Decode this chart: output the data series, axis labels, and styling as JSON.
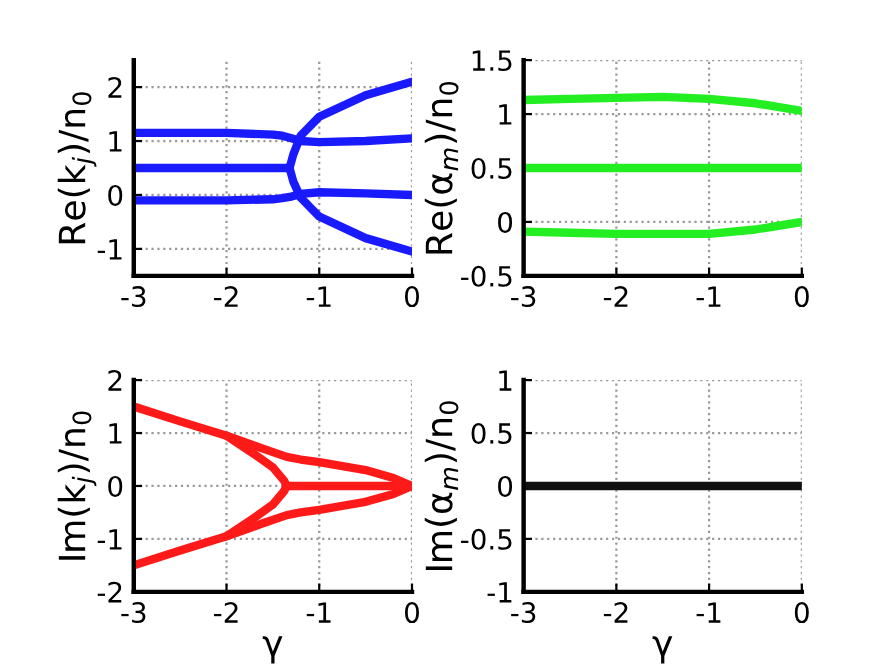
{
  "chart_data": [
    {
      "type": "line",
      "ylabel": "Re(k$_{j}$)/n$_{0}$",
      "xlim": [
        -3,
        0
      ],
      "ylim": [
        -1.5,
        2.5
      ],
      "xticks": [
        -3,
        -2,
        -1,
        0
      ],
      "yticks": [
        -1,
        0,
        1,
        2
      ],
      "grid": true,
      "x": [
        -3,
        -2.5,
        -2,
        -1.5,
        -1.4,
        -1.3,
        -1.2,
        -1.0,
        -0.5,
        0
      ],
      "series": [
        {
          "color": "#1a1aff",
          "values": [
            1.15,
            1.15,
            1.15,
            1.12,
            1.1,
            1.05,
            1.0,
            0.98,
            1.0,
            1.05
          ]
        },
        {
          "color": "#1a1aff",
          "x": [
            -3,
            -2,
            -1.32,
            -1.28,
            -1.2,
            -1.0,
            -0.5,
            0
          ],
          "values": [
            0.5,
            0.5,
            0.5,
            0.75,
            1.1,
            1.45,
            1.85,
            2.1
          ]
        },
        {
          "color": "#1a1aff",
          "x": [
            -1.32,
            -1.28,
            -1.2,
            -1.0,
            -0.5,
            0
          ],
          "values": [
            0.5,
            0.25,
            -0.05,
            -0.4,
            -0.8,
            -1.05
          ]
        },
        {
          "color": "#1a1aff",
          "values": [
            -0.1,
            -0.1,
            -0.1,
            -0.08,
            -0.06,
            -0.03,
            0.02,
            0.05,
            0.03,
            0.0
          ]
        }
      ]
    },
    {
      "type": "line",
      "ylabel": "Re(α$_{m}$)/n$_{0}$",
      "xlim": [
        -3,
        0
      ],
      "ylim": [
        -0.5,
        1.5
      ],
      "xticks": [
        -3,
        -2,
        -1,
        0
      ],
      "yticks": [
        -0.5,
        0,
        0.5,
        1,
        1.5
      ],
      "grid": true,
      "x": [
        -3,
        -2.5,
        -2,
        -1.5,
        -1,
        -0.5,
        0
      ],
      "series": [
        {
          "color": "#22ee22",
          "values": [
            1.13,
            1.14,
            1.15,
            1.16,
            1.14,
            1.1,
            1.03
          ]
        },
        {
          "color": "#22ee22",
          "values": [
            0.5,
            0.5,
            0.5,
            0.5,
            0.5,
            0.5,
            0.5
          ]
        },
        {
          "color": "#22ee22",
          "values": [
            -0.09,
            -0.1,
            -0.11,
            -0.11,
            -0.11,
            -0.07,
            0.0
          ]
        }
      ]
    },
    {
      "type": "line",
      "xlabel": "γ",
      "ylabel": "Im(k$_{j}$)/n$_{0}$",
      "xlim": [
        -3,
        0
      ],
      "ylim": [
        -2,
        2
      ],
      "xticks": [
        -3,
        -2,
        -1,
        0
      ],
      "yticks": [
        -2,
        -1,
        0,
        1,
        2
      ],
      "grid": true,
      "x": [
        -3,
        -2.5,
        -2,
        -1.6,
        -1.35,
        -1.2,
        -1,
        -0.5,
        -0.2,
        0
      ],
      "series": [
        {
          "color": "#ff1a1a",
          "values": [
            1.5,
            1.22,
            0.95,
            0.7,
            0.55,
            0.5,
            0.45,
            0.3,
            0.15,
            0.0
          ]
        },
        {
          "color": "#ff1a1a",
          "values": [
            -1.5,
            -1.22,
            -0.95,
            -0.7,
            -0.55,
            -0.5,
            -0.45,
            -0.3,
            -0.15,
            0.0
          ]
        },
        {
          "color": "#ff1a1a",
          "x": [
            -2,
            -1.7,
            -1.5,
            -1.38,
            -1.35,
            -1.38,
            -1.5,
            -1.7,
            -2
          ],
          "values": [
            0.95,
            0.6,
            0.35,
            0.1,
            0.0,
            -0.1,
            -0.35,
            -0.6,
            -0.95
          ]
        },
        {
          "color": "#ff1a1a",
          "x": [
            -1.35,
            0
          ],
          "values": [
            0,
            0
          ]
        }
      ]
    },
    {
      "type": "line",
      "xlabel": "γ",
      "ylabel": "Im(α$_{m}$)/n$_{0}$",
      "xlim": [
        -3,
        0
      ],
      "ylim": [
        -1,
        1
      ],
      "xticks": [
        -3,
        -2,
        -1,
        0
      ],
      "yticks": [
        -1,
        -0.5,
        0,
        0.5,
        1
      ],
      "grid": true,
      "x": [
        -3,
        0
      ],
      "series": [
        {
          "color": "#111111",
          "values": [
            0,
            0
          ]
        }
      ]
    }
  ]
}
